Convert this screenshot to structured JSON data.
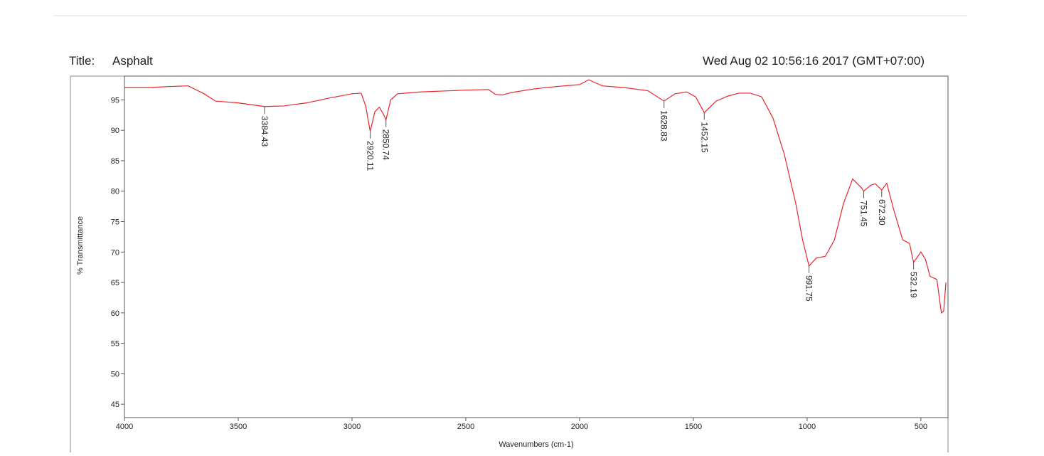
{
  "chart_data": {
    "type": "line",
    "title_prefix": "Title:",
    "title": "Asphalt",
    "subtitle": "Wed Aug 02 10:56:16 2017 (GMT+07:00)",
    "x_label": "Wavenumbers (cm-1)",
    "y_label": "% Transmittance",
    "x": [
      4000,
      3900,
      3800,
      3720,
      3650,
      3600,
      3500,
      3384.43,
      3300,
      3200,
      3100,
      3000,
      2960,
      2940,
      2920.11,
      2900,
      2880,
      2860,
      2850.74,
      2830,
      2800,
      2700,
      2500,
      2400,
      2370,
      2340,
      2300,
      2200,
      2100,
      2000,
      1960,
      1900,
      1800,
      1700,
      1628.83,
      1580,
      1530,
      1490,
      1452.15,
      1400,
      1350,
      1300,
      1250,
      1200,
      1150,
      1100,
      1050,
      1020,
      991.75,
      960,
      920,
      880,
      840,
      800,
      760,
      751.45,
      720,
      700,
      672.3,
      650,
      620,
      580,
      550,
      532.19,
      500,
      480,
      460,
      430,
      410,
      400,
      390
    ],
    "series": [
      {
        "color": "#e8262a",
        "values": [
          97.0,
          97.0,
          97.2,
          97.3,
          96.0,
          94.8,
          94.5,
          93.9,
          94.0,
          94.5,
          95.3,
          96.0,
          96.1,
          94.0,
          89.8,
          93.0,
          93.8,
          92.5,
          91.7,
          95.0,
          96.0,
          96.3,
          96.6,
          96.7,
          95.9,
          95.8,
          96.2,
          96.8,
          97.2,
          97.5,
          98.3,
          97.3,
          97.0,
          96.5,
          94.8,
          96.0,
          96.3,
          95.5,
          92.9,
          94.8,
          95.6,
          96.1,
          96.1,
          95.5,
          92.0,
          86.0,
          78.0,
          72.0,
          67.7,
          69.0,
          69.3,
          72.0,
          78.0,
          82.0,
          80.5,
          80.0,
          81.0,
          81.2,
          80.2,
          81.3,
          77.0,
          72.0,
          71.4,
          68.3,
          70.0,
          68.8,
          66.0,
          65.5,
          60.0,
          60.3,
          65.0
        ]
      }
    ],
    "peaks": [
      {
        "x": 3384.43,
        "y": 93.9,
        "label": "3384.43"
      },
      {
        "x": 2920.11,
        "y": 89.8,
        "label": "2920.11"
      },
      {
        "x": 2850.74,
        "y": 91.7,
        "label": "2850.74"
      },
      {
        "x": 1628.83,
        "y": 94.8,
        "label": "1628.83"
      },
      {
        "x": 1452.15,
        "y": 92.9,
        "label": "1452.15"
      },
      {
        "x": 991.75,
        "y": 67.7,
        "label": "991.75"
      },
      {
        "x": 751.45,
        "y": 80.0,
        "label": "751.45"
      },
      {
        "x": 672.3,
        "y": 80.2,
        "label": "672.30"
      },
      {
        "x": 532.19,
        "y": 68.3,
        "label": "532.19"
      }
    ],
    "xlim": [
      4000,
      381
    ],
    "ylim": [
      42.8,
      98.9
    ],
    "xticks": [
      4000,
      3500,
      3000,
      2500,
      2000,
      1500,
      1000,
      500
    ],
    "yticks": [
      45,
      50,
      55,
      60,
      65,
      70,
      75,
      80,
      85,
      90,
      95
    ]
  }
}
